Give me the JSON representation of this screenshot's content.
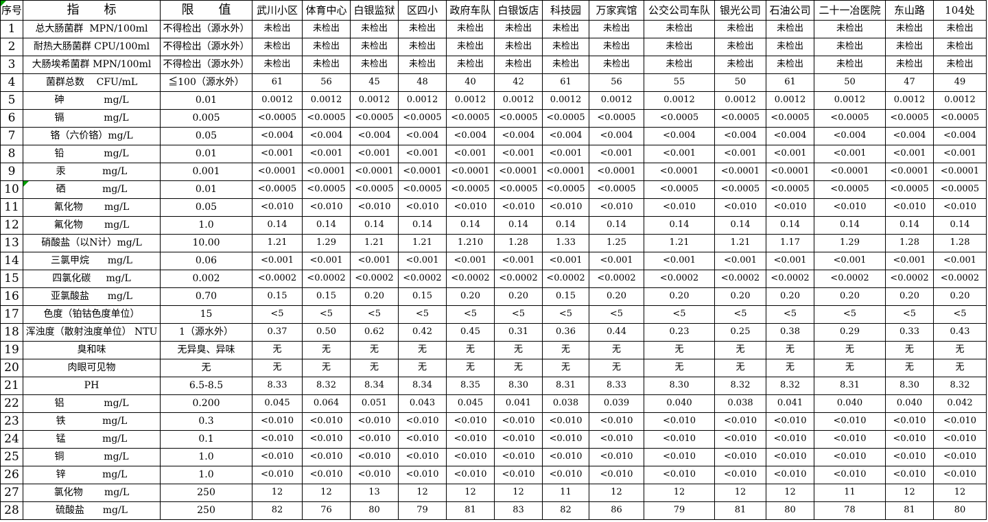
{
  "flags": {
    "color": "#00a000"
  },
  "table": {
    "header": {
      "index": "序号",
      "indicator": "指　　标",
      "limit": "限　　值",
      "stations": [
        "武川小区",
        "体育中心",
        "白银监狱",
        "区四小",
        "政府车队",
        "白银饭店",
        "科技园",
        "万家宾馆",
        "公交公司车队",
        "银光公司",
        "石油公司",
        "二十一冶医院",
        "东山路",
        "104处"
      ]
    },
    "rows": [
      {
        "no": "1",
        "indicator": "总大肠菌群  MPN/100ml",
        "limit": "不得检出（源水外）",
        "values": [
          "未检出",
          "未检出",
          "未检出",
          "未检出",
          "未检出",
          "未检出",
          "未检出",
          "未检出",
          "未检出",
          "未检出",
          "未检出",
          "未检出",
          "未检出",
          "未检出"
        ]
      },
      {
        "no": "2",
        "indicator": "耐热大肠菌群 CPU/100ml",
        "limit": "不得检出（源水外）",
        "values": [
          "未检出",
          "未检出",
          "未检出",
          "未检出",
          "未检出",
          "未检出",
          "未检出",
          "未检出",
          "未检出",
          "未检出",
          "未检出",
          "未检出",
          "未检出",
          "未检出"
        ]
      },
      {
        "no": "3",
        "indicator": "大肠埃希菌群 MPN/100ml",
        "limit": "不得检出（源水外）",
        "values": [
          "未检出",
          "未检出",
          "未检出",
          "未检出",
          "未检出",
          "未检出",
          "未检出",
          "未检出",
          "未检出",
          "未检出",
          "未检出",
          "未检出",
          "未检出",
          "未检出"
        ]
      },
      {
        "no": "4",
        "indicator": "菌群总数    CFU/mL",
        "limit": "≦100（源水外）",
        "values": [
          "61",
          "56",
          "45",
          "48",
          "40",
          "42",
          "61",
          "56",
          "55",
          "50",
          "61",
          "50",
          "47",
          "49"
        ]
      },
      {
        "no": "5",
        "indicator": "砷             mg/L",
        "limit": "0.01",
        "values": [
          "0.0012",
          "0.0012",
          "0.0012",
          "0.0012",
          "0.0012",
          "0.0012",
          "0.0012",
          "0.0012",
          "0.0012",
          "0.0012",
          "0.0012",
          "0.0012",
          "0.0012",
          "0.0012"
        ]
      },
      {
        "no": "6",
        "indicator": "镉             mg/L",
        "limit": "0.005",
        "values": [
          "<0.0005",
          "<0.0005",
          "<0.0005",
          "<0.0005",
          "<0.0005",
          "<0.0005",
          "<0.0005",
          "<0.0005",
          "<0.0005",
          "<0.0005",
          "<0.0005",
          "<0.0005",
          "<0.0005",
          "<0.0005"
        ]
      },
      {
        "no": "7",
        "indicator": "铬（六价铬）mg/L",
        "limit": "0.05",
        "values": [
          "<0.004",
          "<0.004",
          "<0.004",
          "<0.004",
          "<0.004",
          "<0.004",
          "<0.004",
          "<0.004",
          "<0.004",
          "<0.004",
          "<0.004",
          "<0.004",
          "<0.004",
          "<0.004"
        ]
      },
      {
        "no": "8",
        "indicator": "铅             mg/L",
        "limit": "0.01",
        "values": [
          "<0.001",
          "<0.001",
          "<0.001",
          "<0.001",
          "<0.001",
          "<0.001",
          "<0.001",
          "<0.001",
          "<0.001",
          "<0.001",
          "<0.001",
          "<0.001",
          "<0.001",
          "<0.001"
        ]
      },
      {
        "no": "9",
        "indicator": "汞            mg/L",
        "limit": "0.001",
        "values": [
          "<0.0001",
          "<0.0001",
          "<0.0001",
          "<0.0001",
          "<0.0001",
          "<0.0001",
          "<0.0001",
          "<0.0001",
          "<0.0001",
          "<0.0001",
          "<0.0001",
          "<0.0001",
          "<0.0001",
          "<0.0001"
        ]
      },
      {
        "no": "10",
        "indicator": "硒            mg/L",
        "limit": "0.01",
        "flag": true,
        "values": [
          "<0.0005",
          "<0.0005",
          "<0.0005",
          "<0.0005",
          "<0.0005",
          "<0.0005",
          "<0.0005",
          "<0.0005",
          "<0.0005",
          "<0.0005",
          "<0.0005",
          "<0.0005",
          "<0.0005",
          "<0.0005"
        ]
      },
      {
        "no": "11",
        "indicator": "氰化物       mg/L",
        "limit": "0.05",
        "values": [
          "<0.010",
          "<0.010",
          "<0.010",
          "<0.010",
          "<0.010",
          "<0.010",
          "<0.010",
          "<0.010",
          "<0.010",
          "<0.010",
          "<0.010",
          "<0.010",
          "<0.010",
          "<0.010"
        ]
      },
      {
        "no": "12",
        "indicator": "氟化物       mg/L",
        "limit": "1.0",
        "values": [
          "0.14",
          "0.14",
          "0.14",
          "0.14",
          "0.14",
          "0.14",
          "0.14",
          "0.14",
          "0.14",
          "0.14",
          "0.14",
          "0.14",
          "0.14",
          "0.14"
        ]
      },
      {
        "no": "13",
        "indicator": "硝酸盐（以N计）mg/L",
        "limit": "10.00",
        "values": [
          "1.21",
          "1.29",
          "1.21",
          "1.21",
          "1.210",
          "1.28",
          "1.33",
          "1.25",
          "1.21",
          "1.21",
          "1.17",
          "1.29",
          "1.28",
          "1.28"
        ]
      },
      {
        "no": "14",
        "indicator": "三氯甲烷      mg/L",
        "limit": "0.06",
        "values": [
          "<0.001",
          "<0.001",
          "<0.001",
          "<0.001",
          "<0.001",
          "<0.001",
          "<0.001",
          "<0.001",
          "<0.001",
          "<0.001",
          "<0.001",
          "<0.001",
          "<0.001",
          "<0.001"
        ]
      },
      {
        "no": "15",
        "indicator": "四氯化碳     mg/L",
        "limit": "0.002",
        "values": [
          "<0.0002",
          "<0.0002",
          "<0.0002",
          "<0.0002",
          "<0.0002",
          "<0.0002",
          "<0.0002",
          "<0.0002",
          "<0.0002",
          "<0.0002",
          "<0.0002",
          "<0.0002",
          "<0.0002",
          "<0.0002"
        ]
      },
      {
        "no": "16",
        "indicator": "亚氯酸盐      mg/L",
        "limit": "0.70",
        "values": [
          "0.15",
          "0.15",
          "0.20",
          "0.15",
          "0.20",
          "0.20",
          "0.15",
          "0.20",
          "0.20",
          "0.20",
          "0.20",
          "0.20",
          "0.20",
          "0.20"
        ]
      },
      {
        "no": "17",
        "indicator": "色度（铂钴色度单位）",
        "limit": "15",
        "values": [
          "<5",
          "<5",
          "<5",
          "<5",
          "<5",
          "<5",
          "<5",
          "<5",
          "<5",
          "<5",
          "<5",
          "<5",
          "<5",
          "<5"
        ]
      },
      {
        "no": "18",
        "indicator": "浑浊度（散射浊度单位） NTU",
        "limit": "1（源水外）",
        "values": [
          "0.37",
          "0.50",
          "0.62",
          "0.42",
          "0.45",
          "0.31",
          "0.36",
          "0.44",
          "0.23",
          "0.25",
          "0.38",
          "0.29",
          "0.33",
          "0.43"
        ]
      },
      {
        "no": "19",
        "indicator": "臭和味",
        "limit": "无异臭、异味",
        "values": [
          "无",
          "无",
          "无",
          "无",
          "无",
          "无",
          "无",
          "无",
          "无",
          "无",
          "无",
          "无",
          "无",
          "无"
        ]
      },
      {
        "no": "20",
        "indicator": "肉眼可见物",
        "limit": "无",
        "values": [
          "无",
          "无",
          "无",
          "无",
          "无",
          "无",
          "无",
          "无",
          "无",
          "无",
          "无",
          "无",
          "无",
          "无"
        ]
      },
      {
        "no": "21",
        "indicator": "PH",
        "limit": "6.5-8.5",
        "values": [
          "8.33",
          "8.32",
          "8.34",
          "8.34",
          "8.35",
          "8.30",
          "8.31",
          "8.33",
          "8.30",
          "8.32",
          "8.32",
          "8.31",
          "8.30",
          "8.32"
        ]
      },
      {
        "no": "22",
        "indicator": "铝             mg/L",
        "limit": "0.200",
        "values": [
          "0.045",
          "0.064",
          "0.051",
          "0.043",
          "0.045",
          "0.041",
          "0.038",
          "0.039",
          "0.040",
          "0.038",
          "0.041",
          "0.040",
          "0.040",
          "0.042"
        ]
      },
      {
        "no": "23",
        "indicator": "铁            mg/L",
        "limit": "0.3",
        "values": [
          "<0.010",
          "<0.010",
          "<0.010",
          "<0.010",
          "<0.010",
          "<0.010",
          "<0.010",
          "<0.010",
          "<0.010",
          "<0.010",
          "<0.010",
          "<0.010",
          "<0.010",
          "<0.010"
        ]
      },
      {
        "no": "24",
        "indicator": "锰            mg/L",
        "limit": "0.1",
        "values": [
          "<0.010",
          "<0.010",
          "<0.010",
          "<0.010",
          "<0.010",
          "<0.010",
          "<0.010",
          "<0.010",
          "<0.010",
          "<0.010",
          "<0.010",
          "<0.010",
          "<0.010",
          "<0.010"
        ]
      },
      {
        "no": "25",
        "indicator": "铜             mg/L",
        "limit": "1.0",
        "values": [
          "<0.010",
          "<0.010",
          "<0.010",
          "<0.010",
          "<0.010",
          "<0.010",
          "<0.010",
          "<0.010",
          "<0.010",
          "<0.010",
          "<0.010",
          "<0.010",
          "<0.010",
          "<0.010"
        ]
      },
      {
        "no": "26",
        "indicator": "锌            mg/L",
        "limit": "1.0",
        "values": [
          "<0.010",
          "<0.010",
          "<0.010",
          "<0.010",
          "<0.010",
          "<0.010",
          "<0.010",
          "<0.010",
          "<0.010",
          "<0.010",
          "<0.010",
          "<0.010",
          "<0.010",
          "<0.010"
        ]
      },
      {
        "no": "27",
        "indicator": "氯化物       mg/L",
        "limit": "250",
        "values": [
          "12",
          "12",
          "13",
          "12",
          "12",
          "12",
          "11",
          "12",
          "12",
          "12",
          "12",
          "11",
          "12",
          "12"
        ]
      },
      {
        "no": "28",
        "indicator": "硫酸盐      mg/L",
        "limit": "250",
        "values": [
          "82",
          "76",
          "80",
          "79",
          "81",
          "83",
          "82",
          "86",
          "79",
          "81",
          "80",
          "78",
          "81",
          "80"
        ]
      }
    ]
  }
}
